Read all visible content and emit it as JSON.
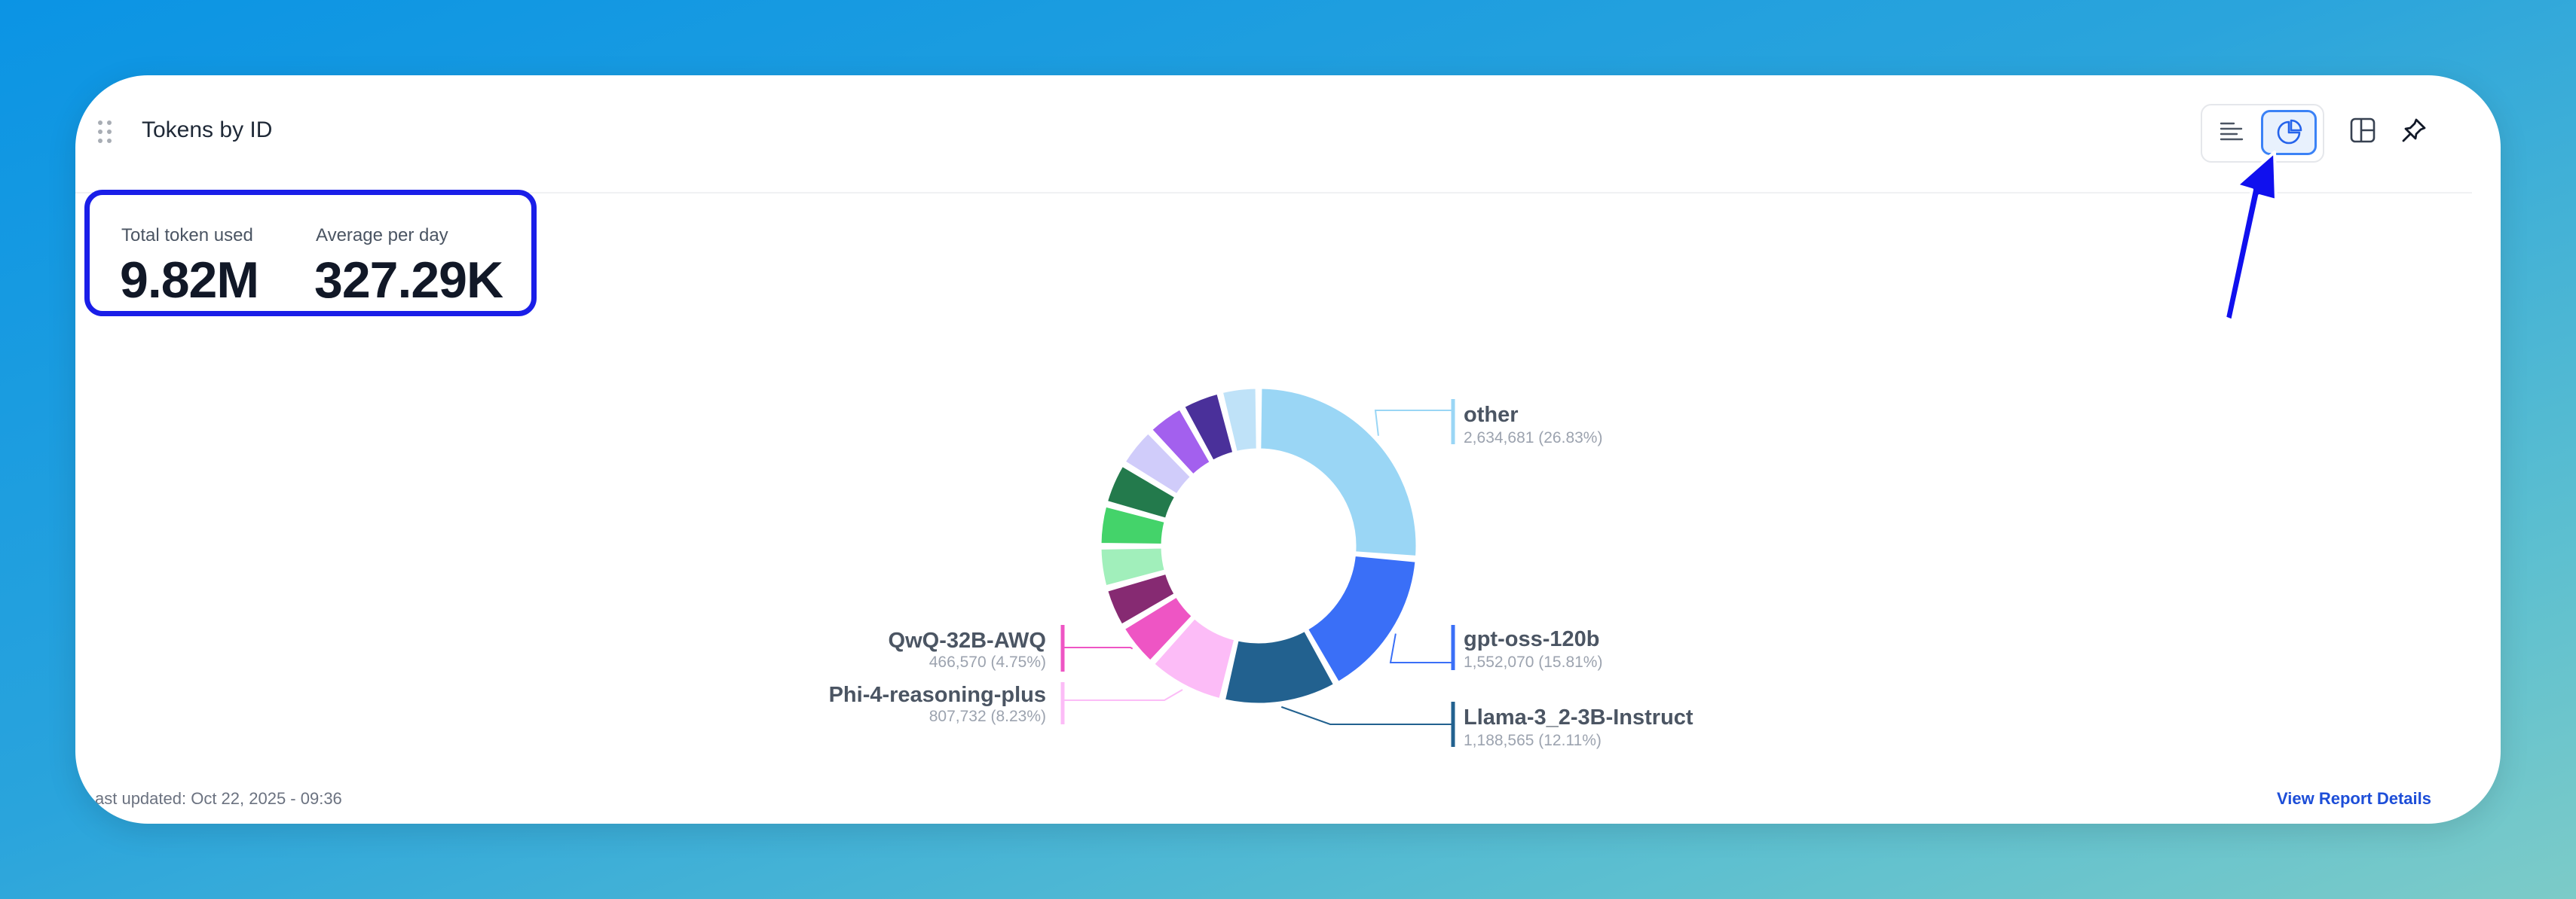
{
  "widget": {
    "title": "Tokens by ID",
    "stats": [
      {
        "label": "Total token used",
        "value": "9.82M"
      },
      {
        "label": "Average per day",
        "value": "327.29K"
      }
    ],
    "footer": {
      "last_updated": "ast updated: Oct 22, 2025 - 09:36",
      "view_report": "View Report Details"
    },
    "toolbar": {
      "icons": [
        "list-view-icon",
        "pie-chart-icon",
        "layout-panel-icon",
        "pin-icon"
      ],
      "active_view": "pie-chart-icon"
    }
  },
  "chart_data": {
    "type": "pie",
    "subtype": "donut",
    "categories": [
      "other",
      "gpt-oss-120b",
      "Llama-3_2-3B-Instruct",
      "Phi-4-reasoning-plus",
      "QwQ-32B-AWQ"
    ],
    "values": [
      2634681,
      1552070,
      1188565,
      807732,
      466570
    ],
    "percent_labels": [
      "26.83%",
      "15.81%",
      "12.11%",
      "8.23%",
      "4.75%"
    ],
    "value_labels": [
      "2,634,681",
      "1,552,070",
      "1,188,565",
      "807,732",
      "466,570"
    ],
    "slices": [
      {
        "name": "other",
        "value": 2634681,
        "percent": 26.83,
        "color": "#9ad6f5",
        "labeled": true
      },
      {
        "name": "gpt-oss-120b",
        "value": 1552070,
        "percent": 15.81,
        "color": "#3a6ff7",
        "labeled": true
      },
      {
        "name": "Llama-3_2-3B-Instruct",
        "value": 1188565,
        "percent": 12.11,
        "color": "#22618f",
        "labeled": true
      },
      {
        "name": "Phi-4-reasoning-plus",
        "value": 807732,
        "percent": 8.23,
        "color": "#fcbcf7",
        "labeled": true
      },
      {
        "name": "QwQ-32B-AWQ",
        "value": 466570,
        "percent": 4.75,
        "color": "#ee55c4",
        "labeled": true
      },
      {
        "name": "",
        "percent": 4.3,
        "color": "#862a72",
        "labeled": false
      },
      {
        "name": "",
        "percent": 4.4,
        "color": "#a1efbb",
        "labeled": false
      },
      {
        "name": "",
        "percent": 4.4,
        "color": "#44d36a",
        "labeled": false
      },
      {
        "name": "",
        "percent": 4.5,
        "color": "#237a4c",
        "labeled": false
      },
      {
        "name": "",
        "percent": 4.3,
        "color": "#d0ccfa",
        "labeled": false
      },
      {
        "name": "",
        "percent": 4.1,
        "color": "#a360ee",
        "labeled": false
      },
      {
        "name": "",
        "percent": 4.2,
        "color": "#4a309a",
        "labeled": false
      },
      {
        "name": "",
        "percent": 4.02,
        "color": "#bfe2f8",
        "labeled": false
      }
    ],
    "legend": "none",
    "label_style": "callouts"
  }
}
